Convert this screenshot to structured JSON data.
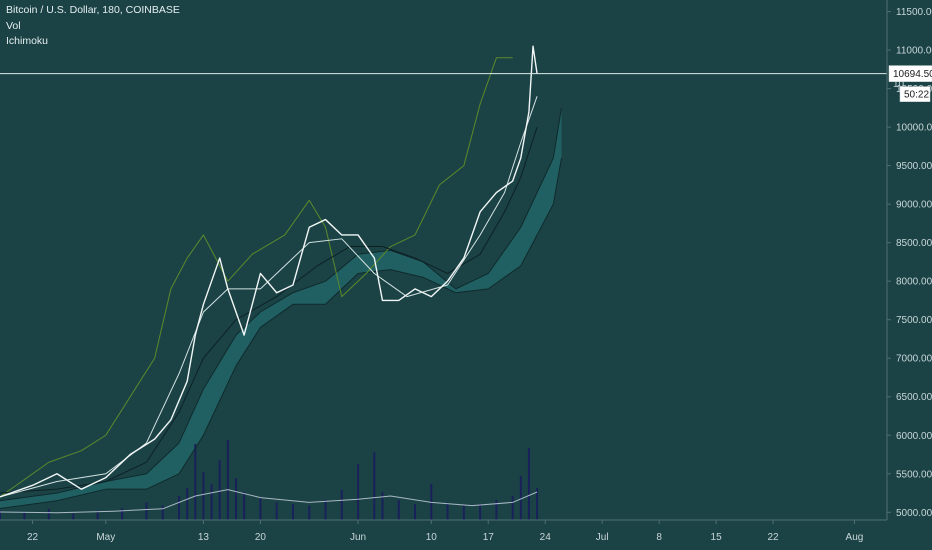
{
  "legend": {
    "title": "Bitcoin / U.S. Dollar, 180, COINBASE",
    "vol": "Vol",
    "ichimoku": "Ichimoku"
  },
  "colors": {
    "background": "#1b4346",
    "price": "#f2f6f6",
    "kijun": "#0d2124",
    "tenkan": "#d4e2e2",
    "lagging": "#5c8a2a",
    "cloud_fill": "#2a8585",
    "cloud_line": "#0f2a2c",
    "volume": "#1a1f5c",
    "volume_ma": "#a9b9c6",
    "axis_text": "#c9d6d8"
  },
  "price_label": {
    "value": "10694.50",
    "countdown": "50:22",
    "hidden_tick": "10"
  },
  "chart_data": {
    "type": "line",
    "x_type": "date",
    "xlim": [
      "2019-04-18",
      "2019-08-05"
    ],
    "ylim": [
      4900,
      11650
    ],
    "y_ticks": [
      "11500.00",
      "11000.00",
      "10500.00",
      "10000.00",
      "9500.00",
      "9000.00",
      "8500.00",
      "8000.00",
      "7500.00",
      "7000.00",
      "6500.00",
      "6000.00",
      "5500.00",
      "5000.00"
    ],
    "y_tick_values": [
      11500,
      11000,
      10500,
      10000,
      9500,
      9000,
      8500,
      8000,
      7500,
      7000,
      6500,
      6000,
      5500,
      5000
    ],
    "x_ticks": [
      {
        "label": "22",
        "date": "2019-04-22"
      },
      {
        "label": "May",
        "date": "2019-05-01"
      },
      {
        "label": "13",
        "date": "2019-05-13"
      },
      {
        "label": "20",
        "date": "2019-05-20"
      },
      {
        "label": "Jun",
        "date": "2019-06-01"
      },
      {
        "label": "10",
        "date": "2019-06-10"
      },
      {
        "label": "17",
        "date": "2019-06-17"
      },
      {
        "label": "24",
        "date": "2019-06-24"
      },
      {
        "label": "Jul",
        "date": "2019-07-01"
      },
      {
        "label": "8",
        "date": "2019-07-08"
      },
      {
        "label": "15",
        "date": "2019-07-15"
      },
      {
        "label": "22",
        "date": "2019-07-22"
      },
      {
        "label": "Aug",
        "date": "2019-08-01"
      }
    ],
    "last_price": 10694.5,
    "series": [
      {
        "role": "price",
        "dates": [
          "2019-04-18",
          "2019-04-22",
          "2019-04-25",
          "2019-04-28",
          "2019-05-01",
          "2019-05-04",
          "2019-05-07",
          "2019-05-09",
          "2019-05-11",
          "2019-05-12",
          "2019-05-13",
          "2019-05-14",
          "2019-05-15",
          "2019-05-16",
          "2019-05-18",
          "2019-05-20",
          "2019-05-22",
          "2019-05-24",
          "2019-05-26",
          "2019-05-28",
          "2019-05-30",
          "2019-06-01",
          "2019-06-03",
          "2019-06-04",
          "2019-06-06",
          "2019-06-08",
          "2019-06-10",
          "2019-06-12",
          "2019-06-14",
          "2019-06-16",
          "2019-06-18",
          "2019-06-20",
          "2019-06-21",
          "2019-06-22",
          "2019-06-22 12:00",
          "2019-06-23"
        ],
        "values": [
          5200,
          5350,
          5500,
          5300,
          5450,
          5750,
          5950,
          6200,
          6700,
          7300,
          7700,
          8000,
          8300,
          7900,
          7300,
          8100,
          7850,
          7950,
          8700,
          8800,
          8600,
          8600,
          8300,
          7750,
          7750,
          7900,
          7800,
          8000,
          8300,
          8900,
          9150,
          9300,
          9600,
          10200,
          11050,
          10694.5
        ]
      },
      {
        "role": "tenkan",
        "dates": [
          "2019-04-18",
          "2019-04-25",
          "2019-05-01",
          "2019-05-06",
          "2019-05-10",
          "2019-05-13",
          "2019-05-16",
          "2019-05-20",
          "2019-05-26",
          "2019-05-30",
          "2019-06-03",
          "2019-06-07",
          "2019-06-12",
          "2019-06-16",
          "2019-06-19",
          "2019-06-21",
          "2019-06-23"
        ],
        "values": [
          5200,
          5400,
          5500,
          5900,
          6800,
          7600,
          7900,
          7900,
          8500,
          8550,
          8100,
          7800,
          7950,
          8600,
          9150,
          9800,
          10400
        ]
      },
      {
        "role": "kijun",
        "dates": [
          "2019-04-18",
          "2019-04-25",
          "2019-05-01",
          "2019-05-06",
          "2019-05-10",
          "2019-05-13",
          "2019-05-17",
          "2019-05-22",
          "2019-05-27",
          "2019-05-31",
          "2019-06-04",
          "2019-06-08",
          "2019-06-12",
          "2019-06-16",
          "2019-06-19",
          "2019-06-21",
          "2019-06-23"
        ],
        "values": [
          5250,
          5300,
          5400,
          5650,
          6300,
          7000,
          7500,
          7800,
          8200,
          8450,
          8450,
          8300,
          8100,
          8350,
          8900,
          9350,
          10000
        ]
      },
      {
        "role": "lagging",
        "dates": [
          "2019-04-18",
          "2019-04-24",
          "2019-04-28",
          "2019-05-01",
          "2019-05-04",
          "2019-05-07",
          "2019-05-09",
          "2019-05-11",
          "2019-05-13",
          "2019-05-16",
          "2019-05-19",
          "2019-05-23",
          "2019-05-26",
          "2019-05-28",
          "2019-05-30",
          "2019-06-02",
          "2019-06-05",
          "2019-06-08",
          "2019-06-11",
          "2019-06-14",
          "2019-06-16",
          "2019-06-18",
          "2019-06-20"
        ],
        "values": [
          5200,
          5650,
          5800,
          6000,
          6500,
          7000,
          7900,
          8300,
          8600,
          8000,
          8350,
          8600,
          9050,
          8700,
          7800,
          8100,
          8450,
          8600,
          9250,
          9500,
          10300,
          10900,
          10900
        ]
      },
      {
        "role": "span_a",
        "dates": [
          "2019-04-18",
          "2019-04-25",
          "2019-05-01",
          "2019-05-06",
          "2019-05-10",
          "2019-05-13",
          "2019-05-17",
          "2019-05-20",
          "2019-05-24",
          "2019-05-28",
          "2019-06-01",
          "2019-06-05",
          "2019-06-09",
          "2019-06-13",
          "2019-06-17",
          "2019-06-21",
          "2019-06-25",
          "2019-06-26"
        ],
        "values": [
          5150,
          5250,
          5400,
          5500,
          5900,
          6600,
          7300,
          7600,
          7850,
          8000,
          8350,
          8400,
          8250,
          7900,
          8100,
          8700,
          9600,
          10250
        ]
      },
      {
        "role": "span_b",
        "dates": [
          "2019-04-18",
          "2019-04-25",
          "2019-05-01",
          "2019-05-06",
          "2019-05-10",
          "2019-05-13",
          "2019-05-17",
          "2019-05-20",
          "2019-05-24",
          "2019-05-28",
          "2019-06-01",
          "2019-06-05",
          "2019-06-09",
          "2019-06-13",
          "2019-06-17",
          "2019-06-21",
          "2019-06-25",
          "2019-06-26"
        ],
        "values": [
          5050,
          5150,
          5300,
          5300,
          5500,
          6000,
          6900,
          7400,
          7700,
          7700,
          8100,
          8150,
          8050,
          7850,
          7900,
          8200,
          9000,
          9600
        ]
      }
    ],
    "volume": {
      "max": 100,
      "dates": [
        "2019-04-18",
        "2019-04-21",
        "2019-04-24",
        "2019-04-27",
        "2019-04-30",
        "2019-05-03",
        "2019-05-06",
        "2019-05-08",
        "2019-05-10",
        "2019-05-11",
        "2019-05-12",
        "2019-05-13",
        "2019-05-14",
        "2019-05-15",
        "2019-05-16",
        "2019-05-17",
        "2019-05-18",
        "2019-05-20",
        "2019-05-22",
        "2019-05-24",
        "2019-05-26",
        "2019-05-28",
        "2019-05-30",
        "2019-06-01",
        "2019-06-03",
        "2019-06-04",
        "2019-06-06",
        "2019-06-08",
        "2019-06-10",
        "2019-06-12",
        "2019-06-14",
        "2019-06-16",
        "2019-06-18",
        "2019-06-20",
        "2019-06-21",
        "2019-06-22",
        "2019-06-23"
      ],
      "values": [
        12,
        10,
        14,
        8,
        12,
        15,
        22,
        18,
        30,
        40,
        95,
        60,
        45,
        75,
        100,
        52,
        35,
        28,
        22,
        20,
        18,
        25,
        38,
        70,
        85,
        35,
        25,
        20,
        45,
        22,
        18,
        20,
        25,
        30,
        55,
        90,
        40
      ]
    },
    "volume_ma": {
      "dates": [
        "2019-04-18",
        "2019-04-25",
        "2019-05-02",
        "2019-05-08",
        "2019-05-12",
        "2019-05-16",
        "2019-05-20",
        "2019-05-26",
        "2019-06-01",
        "2019-06-05",
        "2019-06-10",
        "2019-06-15",
        "2019-06-20",
        "2019-06-23"
      ],
      "values": [
        10,
        9,
        11,
        14,
        30,
        38,
        28,
        22,
        26,
        30,
        22,
        18,
        22,
        35
      ]
    }
  }
}
